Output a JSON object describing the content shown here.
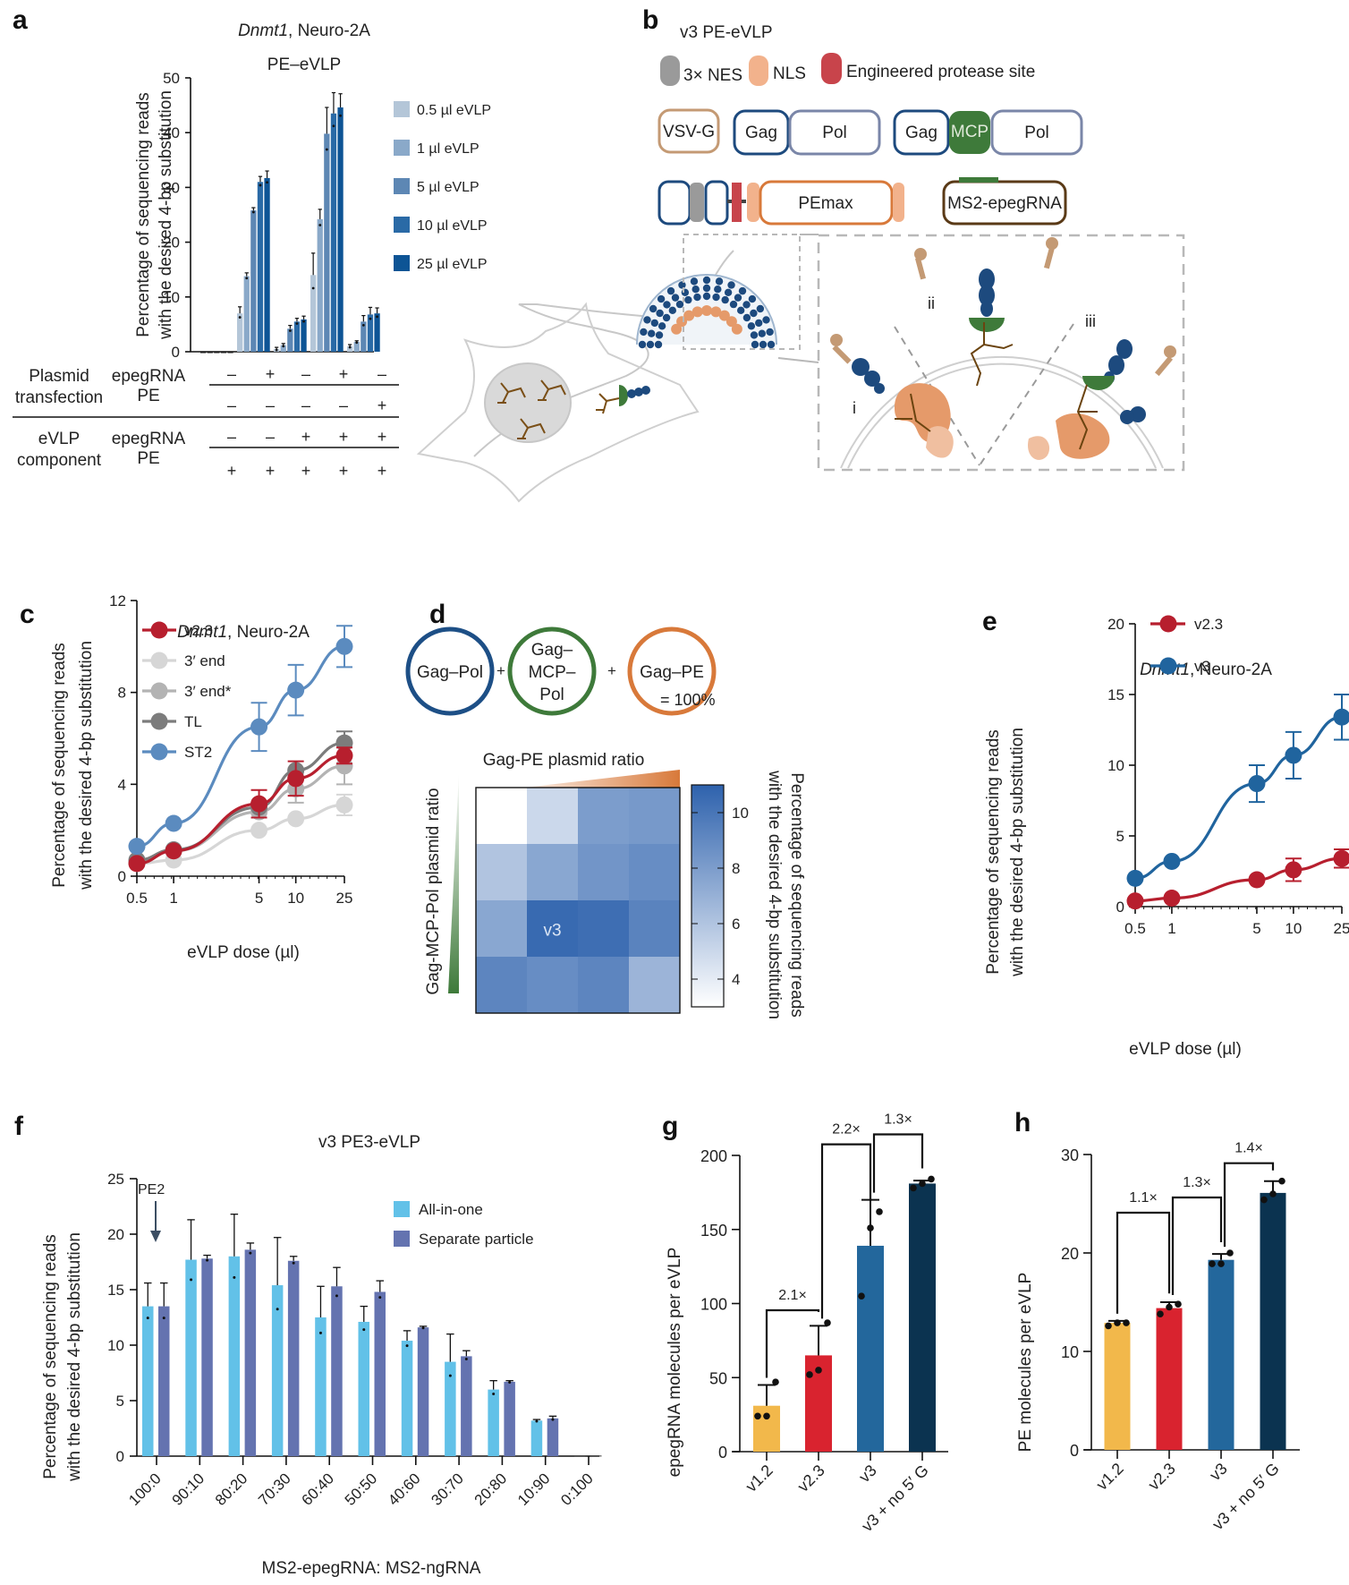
{
  "panel_labels": {
    "a": "a",
    "b": "b",
    "c": "c",
    "d": "d",
    "e": "e",
    "f": "f",
    "g": "g",
    "h": "h"
  },
  "chart_data": [
    {
      "id": "a",
      "type": "bar",
      "title_italic": "Dnmt1",
      "title": ", Neuro-2A",
      "subtitle": "PE–eVLP",
      "ylabel": [
        "Percentage of sequencing reads",
        "with the desired 4-bp substitution"
      ],
      "ylim": [
        0,
        50
      ],
      "yticks": [
        0,
        10,
        20,
        30,
        40,
        50
      ],
      "grid": false,
      "legend_position": "right",
      "series": [
        {
          "name": "0.5 µl eVLP",
          "color": "#b4c6d8",
          "values": [
            0,
            7,
            0.5,
            14,
            1
          ],
          "errors": [
            0,
            1.2,
            0.3,
            4,
            0.3
          ]
        },
        {
          "name": "1 µl eVLP",
          "color": "#8aa9c9",
          "values": [
            0,
            13.8,
            1.2,
            24.2,
            1.8
          ],
          "errors": [
            0,
            0.6,
            0.3,
            1.8,
            0.2
          ]
        },
        {
          "name": "5 µl eVLP",
          "color": "#5d87b4",
          "values": [
            0,
            25.8,
            4.2,
            39.8,
            5.5
          ],
          "errors": [
            0,
            0.5,
            0.6,
            4.8,
            1.1
          ]
        },
        {
          "name": "10 µl eVLP",
          "color": "#2a6aa6",
          "values": [
            0,
            31.0,
            5.5,
            43.5,
            6.8
          ],
          "errors": [
            0,
            1.0,
            0.6,
            3.8,
            1.3
          ]
        },
        {
          "name": "25 µl eVLP",
          "color": "#0d5495",
          "values": [
            0,
            31.7,
            5.9,
            44.6,
            7.0
          ],
          "errors": [
            0,
            1.3,
            0.6,
            2.5,
            1.0
          ]
        }
      ],
      "condition_table": {
        "groups": [
          {
            "group": [
              "Plasmid",
              "transfection"
            ],
            "rows": [
              {
                "label": "epegRNA",
                "values": [
                  "–",
                  "+",
                  "–",
                  "+",
                  "–"
                ]
              },
              {
                "label": "PE",
                "values": [
                  "–",
                  "–",
                  "–",
                  "–",
                  "+"
                ]
              }
            ]
          },
          {
            "group": [
              "eVLP",
              "component"
            ],
            "rows": [
              {
                "label": "epegRNA",
                "values": [
                  "–",
                  "–",
                  "+",
                  "+",
                  "+"
                ]
              },
              {
                "label": "PE",
                "values": [
                  "+",
                  "+",
                  "+",
                  "+",
                  "+"
                ]
              }
            ]
          }
        ]
      }
    },
    {
      "id": "c",
      "type": "line",
      "title_italic": "Dnmt1",
      "title": ", Neuro-2A",
      "xlabel": "eVLP dose (µl)",
      "ylabel": [
        "Percentage of sequencing reads",
        "with the desired 4-bp substitution"
      ],
      "x": [
        0.5,
        1,
        5,
        10,
        25
      ],
      "xscale": "log",
      "xticks": [
        "0.5",
        "1",
        "5",
        "10",
        "25"
      ],
      "ylim": [
        0,
        12
      ],
      "yticks": [
        0,
        4,
        8,
        12
      ],
      "legend_position": "top-left",
      "series": [
        {
          "name": "3′ end",
          "color": "#d6d6d6",
          "values": [
            0.55,
            0.7,
            2.0,
            2.5,
            3.1
          ],
          "errors": [
            0,
            0,
            0,
            0,
            0.45
          ]
        },
        {
          "name": "3′ end*",
          "color": "#b3b3b3",
          "values": [
            0.6,
            1.1,
            2.8,
            3.8,
            4.8
          ],
          "errors": [
            0,
            0,
            0,
            0.6,
            0.8
          ]
        },
        {
          "name": "TL",
          "color": "#7c7c7c",
          "values": [
            0.7,
            1.15,
            3.0,
            4.6,
            5.8
          ],
          "errors": [
            0,
            0,
            0,
            0,
            0.5
          ]
        },
        {
          "name": "v2.3",
          "color": "#b71f2e",
          "values": [
            0.55,
            1.1,
            3.15,
            4.25,
            5.25
          ],
          "errors": [
            0,
            0,
            0.6,
            0.75,
            0.35
          ]
        },
        {
          "name": "ST2",
          "color": "#5b8bbf",
          "values": [
            1.3,
            2.3,
            6.5,
            8.1,
            10.0
          ],
          "errors": [
            0,
            0,
            1.05,
            1.1,
            0.9
          ]
        }
      ],
      "legend_order": [
        "v2.3",
        "3′ end",
        "3′ end*",
        "TL",
        "ST2"
      ]
    },
    {
      "id": "d",
      "type": "heatmap",
      "components": [
        {
          "label": [
            "Gag–Pol"
          ],
          "color": "#1d4f86"
        },
        {
          "label": [
            "Gag–",
            "MCP–",
            "Pol"
          ],
          "color": "#3e7a3a"
        },
        {
          "label": [
            "Gag–PE"
          ],
          "color": "#d8793a"
        }
      ],
      "plus": "+",
      "equals": "= 100%",
      "xlabel": "Gag-PE plasmid ratio",
      "ylabel": "Gag-MCP-Pol plasmid ratio",
      "colorbar_label": [
        "Percentage of sequencing reads",
        "with the desired 4-bp substitution"
      ],
      "colorbar_range": [
        3,
        11
      ],
      "colorbar_ticks": [
        4,
        6,
        8,
        10
      ],
      "matrix": [
        [
          3.0,
          5.0,
          8.0,
          8.2
        ],
        [
          6.0,
          7.5,
          8.4,
          8.8
        ],
        [
          7.5,
          10.6,
          10.4,
          9.3
        ],
        [
          9.2,
          8.8,
          9.2,
          6.8
        ]
      ],
      "annotation": {
        "row": 2,
        "col": 1,
        "text": "v3"
      }
    },
    {
      "id": "e",
      "type": "line",
      "title_italic": "Dnmt1",
      "title": ", Neuro-2A",
      "xlabel": "eVLP dose (µl)",
      "ylabel": [
        "Percentage of sequencing reads",
        "with the desired 4-bp substitution"
      ],
      "x": [
        0.5,
        1,
        5,
        10,
        25
      ],
      "xscale": "log",
      "xticks": [
        "0.5",
        "1",
        "5",
        "10",
        "25"
      ],
      "ylim": [
        0,
        20
      ],
      "yticks": [
        0,
        5,
        10,
        15,
        20
      ],
      "legend_position": "top-left",
      "series": [
        {
          "name": "v2.3",
          "color": "#b71f2e",
          "values": [
            0.4,
            0.6,
            1.9,
            2.6,
            3.4
          ],
          "errors": [
            0,
            0,
            0,
            0.8,
            0.65
          ]
        },
        {
          "name": "v3",
          "color": "#20649e",
          "values": [
            2.0,
            3.2,
            8.7,
            10.7,
            13.4
          ],
          "errors": [
            0,
            0,
            1.3,
            1.65,
            1.6
          ]
        }
      ]
    },
    {
      "id": "f",
      "type": "bar",
      "title": "v3 PE3-eVLP",
      "xlabel": "MS2-epegRNA: MS2-ngRNA",
      "ylabel": [
        "Percentage of sequencing reads",
        "with the desired 4-bp substitution"
      ],
      "categories": [
        "100:0",
        "90:10",
        "80:20",
        "70:30",
        "60:40",
        "50:50",
        "40:60",
        "30:70",
        "20:80",
        "10:90",
        "0:100"
      ],
      "ylim": [
        0,
        25
      ],
      "yticks": [
        0,
        5,
        10,
        15,
        20,
        25
      ],
      "legend_position": "top-right",
      "annotation": {
        "text": "PE2",
        "category": "100:0"
      },
      "series": [
        {
          "name": "All-in-one",
          "color": "#62c1e8",
          "values": [
            13.5,
            17.7,
            18.0,
            15.4,
            12.5,
            12.1,
            10.4,
            8.5,
            6.0,
            3.2,
            0.05
          ],
          "errors": [
            2.1,
            3.6,
            3.8,
            4.3,
            2.8,
            1.4,
            0.9,
            2.5,
            0.8,
            0.1,
            0
          ]
        },
        {
          "name": "Separate particle",
          "color": "#6473b0",
          "values": [
            13.5,
            17.8,
            18.6,
            17.6,
            15.3,
            14.8,
            11.6,
            9.0,
            6.7,
            3.4,
            0.05
          ],
          "errors": [
            2.1,
            0.3,
            0.6,
            0.4,
            1.7,
            1.0,
            0.1,
            0.5,
            0.1,
            0.2,
            0
          ]
        }
      ]
    },
    {
      "id": "g",
      "type": "bar",
      "ylabel": "epegRNA molecules per eVLP",
      "categories": [
        "v1.2",
        "v2.3",
        "v3",
        "v3 + no 5′ G"
      ],
      "ylim": [
        0,
        200
      ],
      "yticks": [
        0,
        50,
        100,
        150,
        200
      ],
      "colors": [
        "#f2b84b",
        "#d9232f",
        "#23679c",
        "#0b3350"
      ],
      "values": [
        31,
        65,
        139,
        181
      ],
      "errors": [
        14,
        20,
        31,
        2
      ],
      "points": [
        [
          24,
          24,
          47
        ],
        [
          52,
          55,
          87
        ],
        [
          105,
          151,
          162
        ],
        [
          178,
          181,
          184
        ]
      ],
      "brackets": [
        {
          "from": 0,
          "to": 1,
          "label": "2.1×"
        },
        {
          "from": 1,
          "to": 2,
          "label": "2.2×"
        },
        {
          "from": 2,
          "to": 3,
          "label": "1.3×"
        }
      ]
    },
    {
      "id": "h",
      "type": "bar",
      "ylabel": "PE molecules per eVLP",
      "categories": [
        "v1.2",
        "v2.3",
        "v3",
        "v3 + no 5′ G"
      ],
      "ylim": [
        0,
        30
      ],
      "yticks": [
        0,
        10,
        20,
        30
      ],
      "colors": [
        "#f2b84b",
        "#d9232f",
        "#23679c",
        "#0b3350"
      ],
      "values": [
        12.9,
        14.4,
        19.3,
        26.1
      ],
      "errors": [
        0.2,
        0.6,
        0.6,
        1.2
      ],
      "points": [
        [
          12.6,
          12.9,
          12.9
        ],
        [
          13.8,
          14.5,
          14.8
        ],
        [
          18.9,
          18.9,
          20.0
        ],
        [
          25.4,
          26.0,
          27.3
        ]
      ],
      "brackets": [
        {
          "from": 0,
          "to": 1,
          "label": "1.1×"
        },
        {
          "from": 1,
          "to": 2,
          "label": "1.3×"
        },
        {
          "from": 2,
          "to": 3,
          "label": "1.4×"
        }
      ]
    }
  ],
  "schematic_b": {
    "title": "v3 PE-eVLP",
    "legend": [
      {
        "label": "3× NES",
        "color": "#9a9a9a"
      },
      {
        "label": "NLS",
        "color": "#f2b28c"
      },
      {
        "label": "Engineered protease site",
        "color": "#c8444b"
      }
    ],
    "constructs": {
      "vsvg": "VSV-G",
      "gag": "Gag",
      "pol": "Pol",
      "mcp": "MCP",
      "pemax": "PEmax",
      "ms2": "MS2-epegRNA"
    },
    "roman": [
      "i",
      "ii",
      "iii"
    ],
    "colors": {
      "vsvg": "#c49a74",
      "gag": "#1d4a7e",
      "pol": "#7a86a8",
      "mcp": "#3e7a3a",
      "pemax": "#d8793a",
      "ms2": "#5a3a17"
    }
  }
}
